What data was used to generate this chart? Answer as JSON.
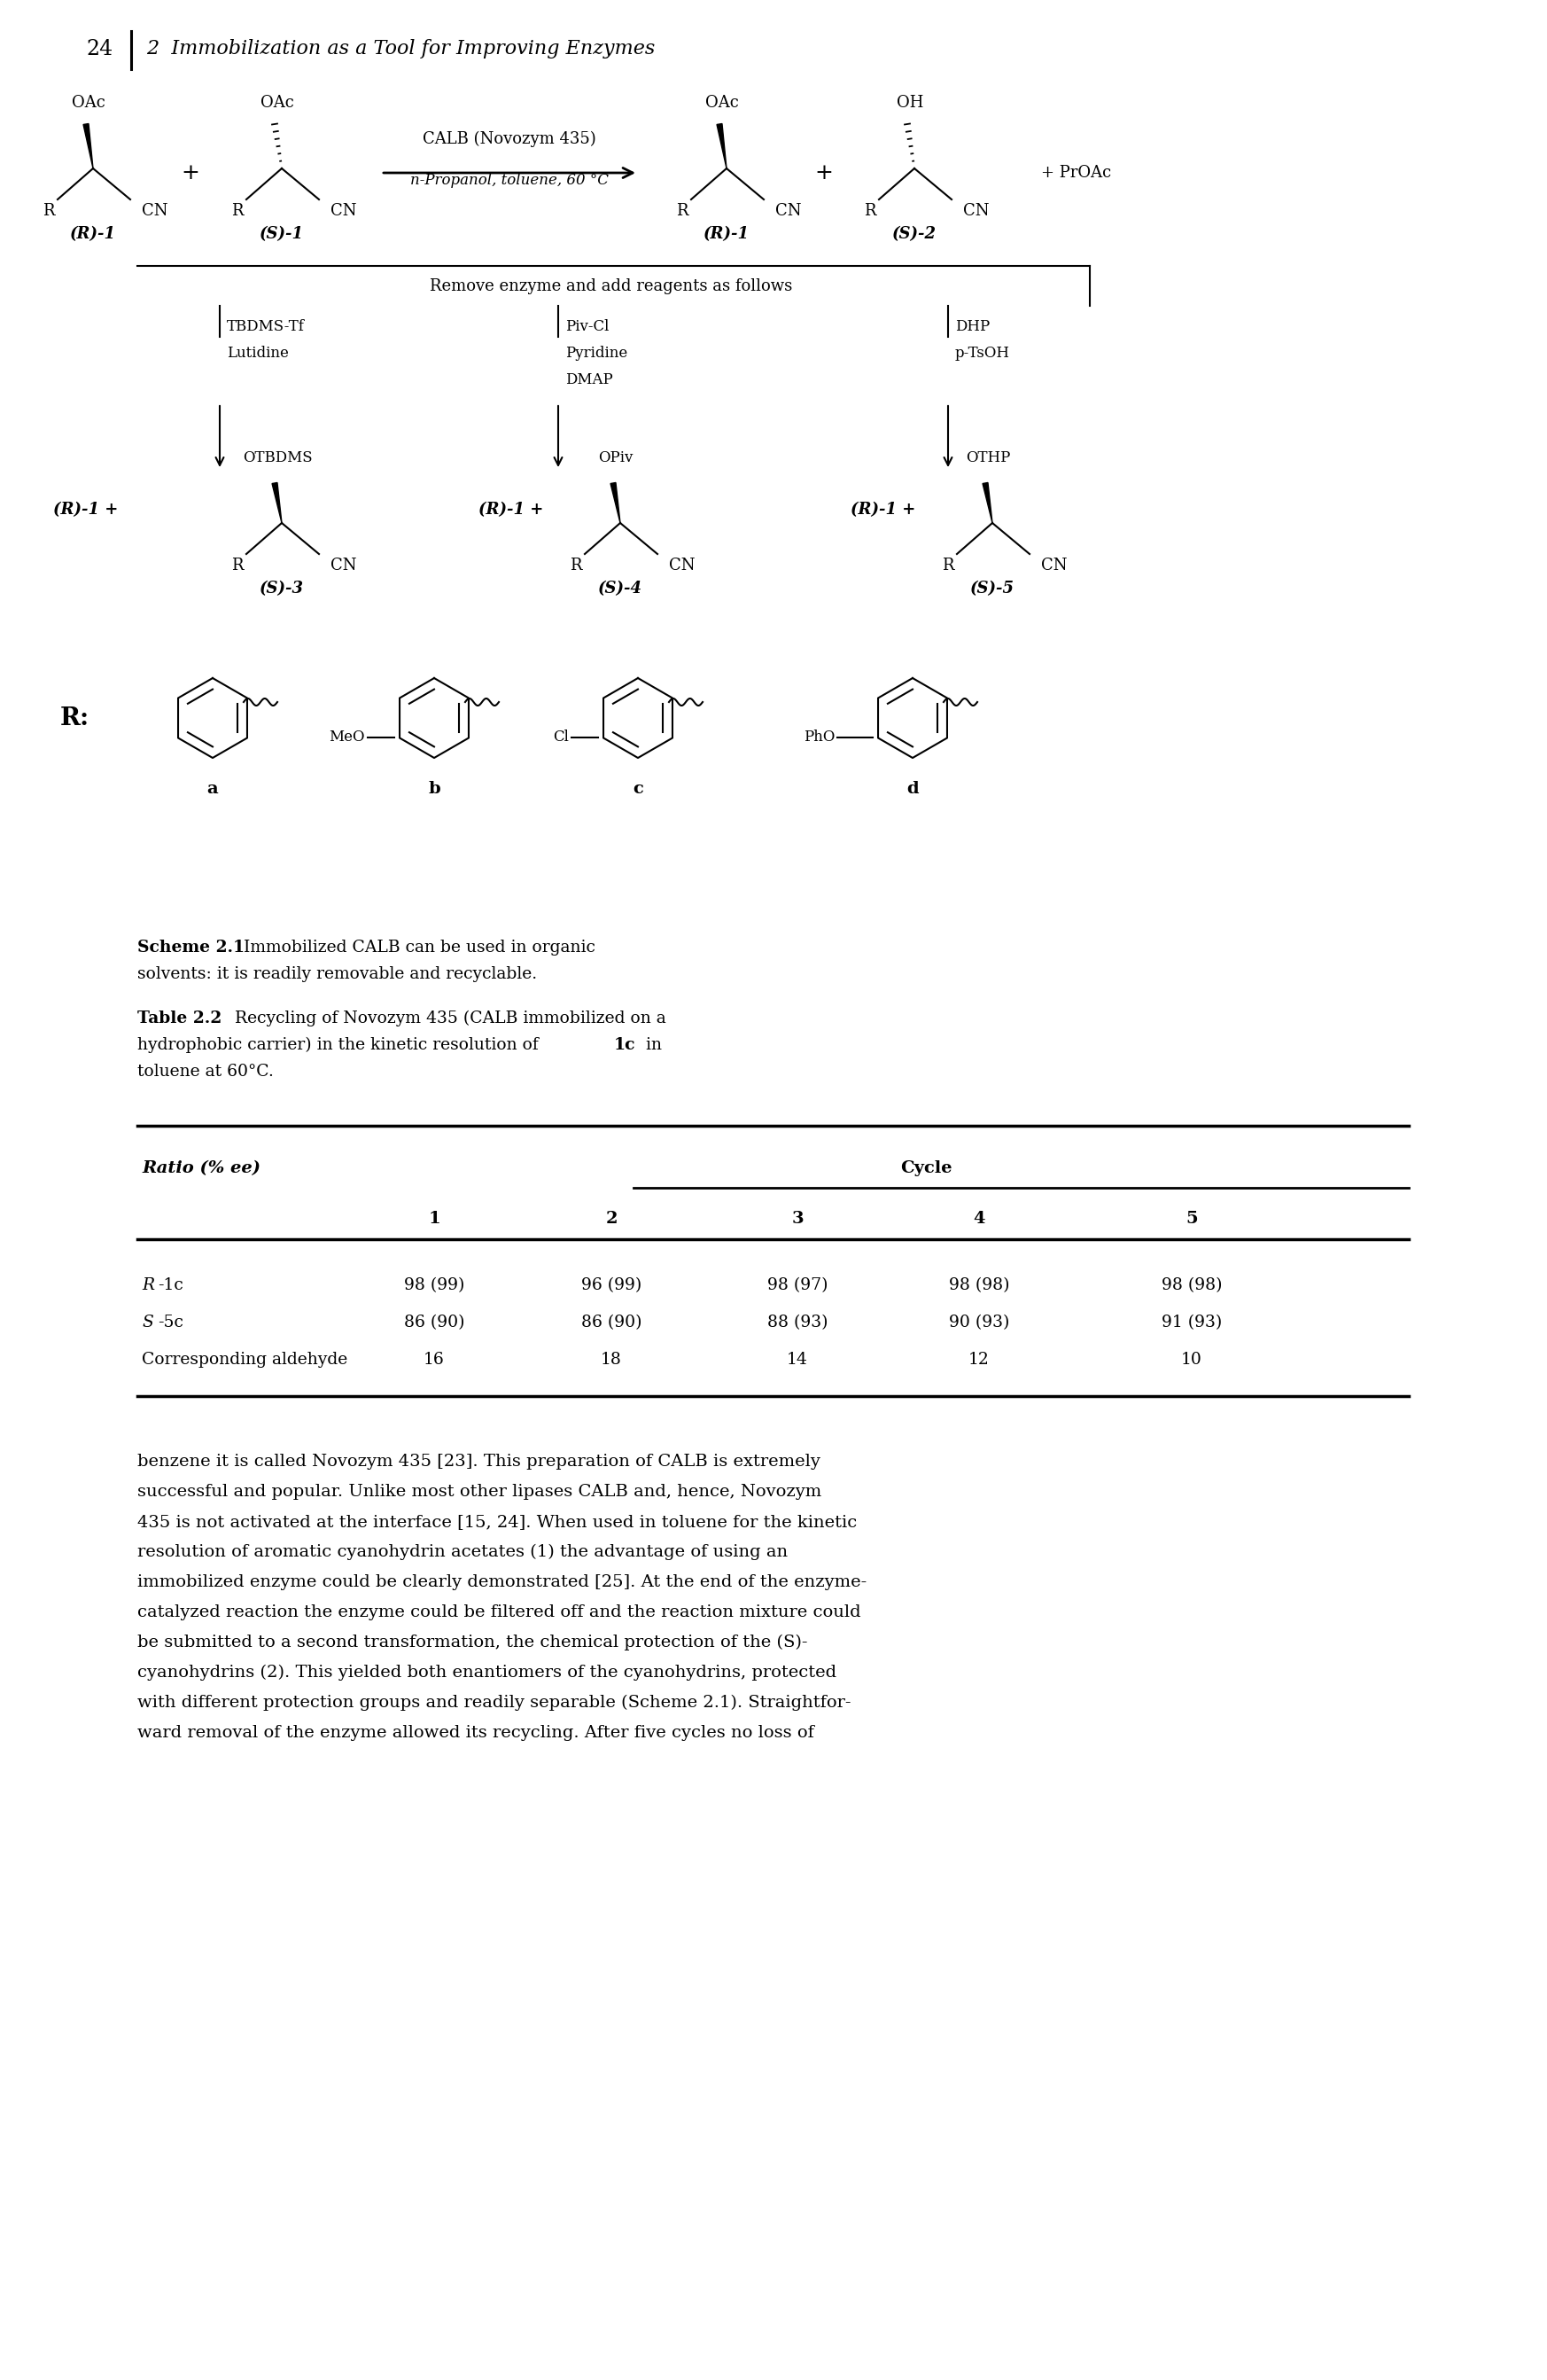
{
  "page_number": "24",
  "chapter_title": "2  Immobilization as a Tool for Improving Enzymes",
  "scheme_caption_bold": "Scheme 2.1",
  "scheme_caption_rest": "  Immobilized CALB can be used in organic",
  "scheme_caption_line2": "solvents: it is readily removable and recyclable.",
  "table_title_bold": "Table 2.2",
  "table_title_rest": "  Recycling of Novozym 435 (CALB immobilized on a",
  "table_title_line2": "hydrophobic carrier) in the kinetic resolution of ",
  "table_title_bold2": "1c",
  "table_title_rest2": " in",
  "table_title_line3": "toluene at 60°C.",
  "table_header_col0": "Ratio (% ee)",
  "table_header_group": "Cycle",
  "table_subheaders": [
    "1",
    "2",
    "3",
    "4",
    "5"
  ],
  "table_rows": [
    [
      "R-1c",
      "98 (99)",
      "96 (99)",
      "98 (97)",
      "98 (98)",
      "98 (98)"
    ],
    [
      "S-5c",
      "86 (90)",
      "86 (90)",
      "88 (93)",
      "90 (93)",
      "91 (93)"
    ],
    [
      "Corresponding aldehyde",
      "16",
      "18",
      "14",
      "12",
      "10"
    ]
  ],
  "body_lines": [
    "benzene it is called Novozym 435 [23]. This preparation of CALB is extremely",
    "successful and popular. Unlike most other lipases CALB and, hence, Novozym",
    "435 is not activated at the interface [15, 24]. When used in toluene for the kinetic",
    "resolution of aromatic cyanohydrin acetates (1) the advantage of using an",
    "immobilized enzyme could be clearly demonstrated [25]. At the end of the enzyme-",
    "catalyzed reaction the enzyme could be filtered off and the reaction mixture could",
    "be submitted to a second transformation, the chemical protection of the (S)-",
    "cyanohydrins (2). This yielded both enantiomers of the cyanohydrins, protected",
    "with different protection groups and readily separable (Scheme 2.1). Straightfor-",
    "ward removal of the enzyme allowed its recycling. After five cycles no loss of"
  ],
  "background_color": "#ffffff"
}
